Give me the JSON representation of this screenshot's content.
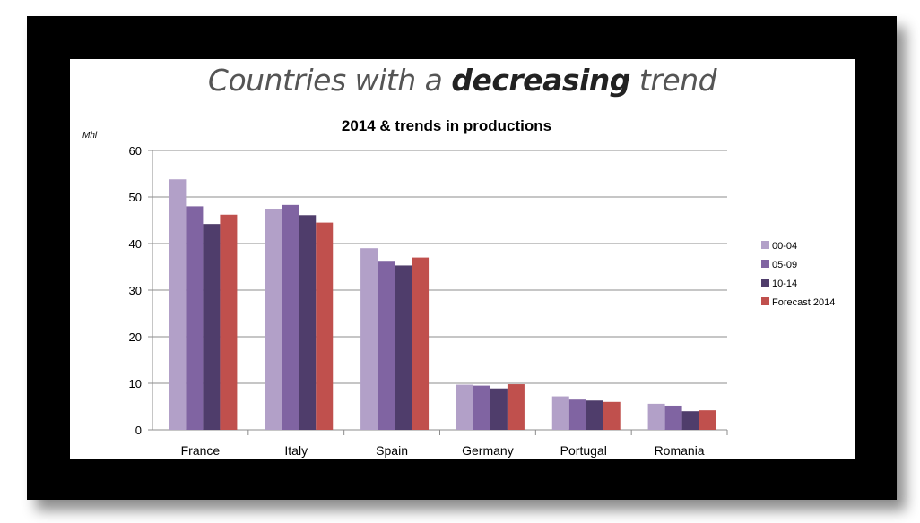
{
  "slide": {
    "title_part1": "Countries with a ",
    "title_emphasis": "decreasing",
    "title_part2": " trend"
  },
  "colors": {
    "frame": "#000000",
    "series": [
      "#b2a0c8",
      "#8064a2",
      "#4f3d6b",
      "#c0504d"
    ]
  },
  "chart_data": {
    "type": "bar",
    "title": "2014 & trends in productions",
    "ylabel": "Mhl",
    "ylim": [
      0,
      60
    ],
    "yticks": [
      0,
      10,
      20,
      30,
      40,
      50,
      60
    ],
    "grid": true,
    "legend_position": "right",
    "categories": [
      "France",
      "Italy",
      "Spain",
      "Germany",
      "Portugal",
      "Romania"
    ],
    "series": [
      {
        "name": "00-04",
        "values": [
          53.8,
          47.5,
          39.0,
          9.7,
          7.2,
          5.6
        ]
      },
      {
        "name": "05-09",
        "values": [
          48.0,
          48.3,
          36.3,
          9.5,
          6.5,
          5.2
        ]
      },
      {
        "name": "10-14",
        "values": [
          44.2,
          46.1,
          35.3,
          8.9,
          6.3,
          4.0
        ]
      },
      {
        "name": "Forecast 2014",
        "values": [
          46.2,
          44.5,
          37.0,
          9.8,
          6.0,
          4.2
        ]
      }
    ]
  }
}
